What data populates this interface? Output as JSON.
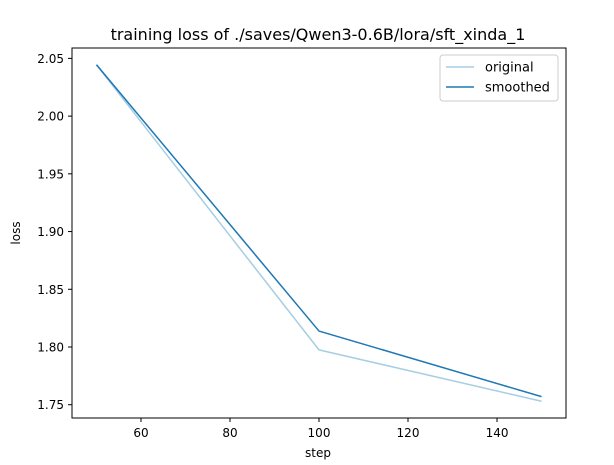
{
  "chart_data": {
    "type": "line",
    "title": "training loss of ./saves/Qwen3-0.6B/lora/sft_xinda_1",
    "xlabel": "step",
    "ylabel": "loss",
    "x": [
      50,
      100,
      150
    ],
    "xlim": [
      44.5,
      155.5
    ],
    "ylim": [
      1.7385,
      2.059
    ],
    "xticks": [
      60,
      80,
      100,
      120,
      140
    ],
    "yticks": [
      1.75,
      1.8,
      1.85,
      1.9,
      1.95,
      2.0,
      2.05
    ],
    "xtick_labels": [
      "60",
      "80",
      "100",
      "120",
      "140"
    ],
    "ytick_labels": [
      "1.75",
      "1.80",
      "1.85",
      "1.90",
      "1.95",
      "2.00",
      "2.05"
    ],
    "grid": false,
    "legend_position": "top-right",
    "series": [
      {
        "name": "original",
        "values": [
          2.0445,
          1.7975,
          1.753
        ],
        "color": "#a6cee3"
      },
      {
        "name": "smoothed",
        "values": [
          2.0445,
          1.8138,
          1.757
        ],
        "color": "#1f78b4"
      }
    ]
  }
}
